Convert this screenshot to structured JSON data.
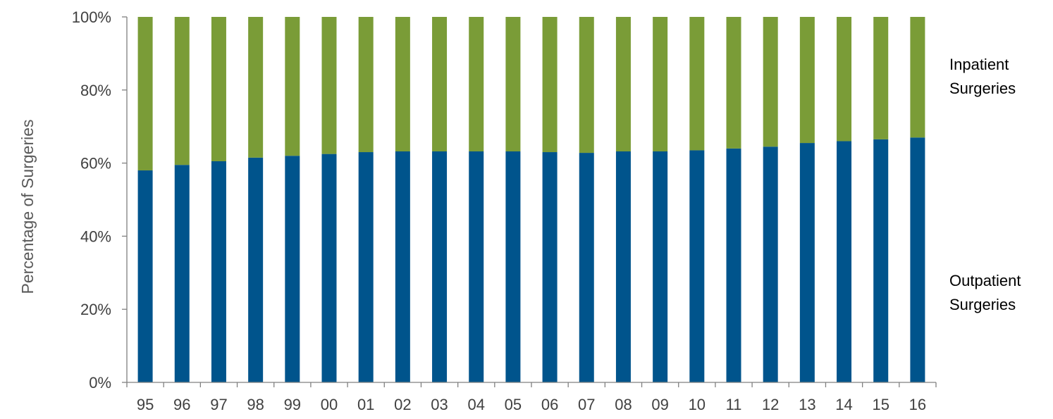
{
  "chart_data": {
    "type": "bar",
    "stacked": true,
    "percent_stacked": true,
    "categories": [
      "95",
      "96",
      "97",
      "98",
      "99",
      "00",
      "01",
      "02",
      "03",
      "04",
      "05",
      "06",
      "07",
      "08",
      "09",
      "10",
      "11",
      "12",
      "13",
      "14",
      "15",
      "16"
    ],
    "series": [
      {
        "name": "Outpatient Surgeries",
        "label_lines": [
          "Outpatient",
          "Surgeries"
        ],
        "color": "#00548c",
        "values": [
          58,
          59.5,
          60.5,
          61.5,
          62,
          62.5,
          63,
          63.2,
          63.2,
          63.2,
          63.2,
          63,
          62.8,
          63.2,
          63.2,
          63.5,
          64,
          64.5,
          65.5,
          66,
          66.5,
          67
        ]
      },
      {
        "name": "Inpatient Surgeries",
        "label_lines": [
          "Inpatient",
          "Surgeries"
        ],
        "color": "#7a9c37",
        "values": [
          42,
          40.5,
          39.5,
          38.5,
          38,
          37.5,
          37,
          36.8,
          36.8,
          36.8,
          36.8,
          37,
          37.2,
          36.8,
          36.8,
          36.5,
          36,
          35.5,
          34.5,
          34,
          33.5,
          33
        ]
      }
    ],
    "ylabel": "Percentage of Surgeries",
    "xlabel": "",
    "ylim": [
      0,
      100
    ],
    "yticks": [
      "0%",
      "20%",
      "40%",
      "60%",
      "80%",
      "100%"
    ],
    "ytick_values": [
      0,
      20,
      40,
      60,
      80,
      100
    ],
    "grid": false,
    "legend": "right, as direct labels beside the stacked bars"
  }
}
